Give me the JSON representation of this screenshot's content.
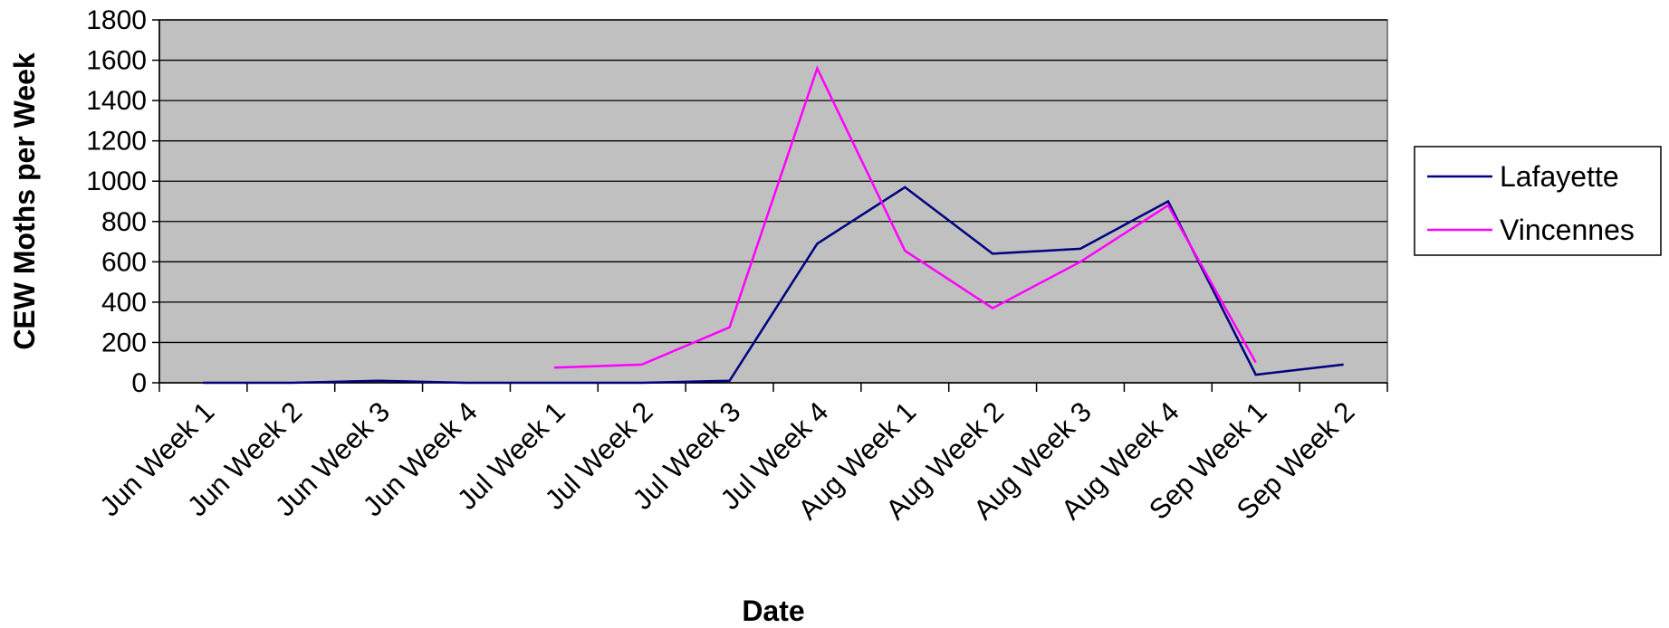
{
  "chart_data": {
    "type": "line",
    "title": "",
    "xlabel": "Date",
    "ylabel": "CEW Moths per Week",
    "ylim": [
      0,
      1800
    ],
    "yticks": [
      0,
      200,
      400,
      600,
      800,
      1000,
      1200,
      1400,
      1600,
      1800
    ],
    "grid": true,
    "plot_background": "#c0c0c0",
    "legend_position": "right",
    "categories": [
      "Jun Week 1",
      "Jun Week 2",
      "Jun Week 3",
      "Jun Week 4",
      "Jul Week 1",
      "Jul Week 2",
      "Jul Week 3",
      "Jul Week 4",
      "Aug Week 1",
      "Aug Week 2",
      "Aug Week 3",
      "Aug Week 4",
      "Sep Week 1",
      "Sep Week 2"
    ],
    "series": [
      {
        "name": "Lafayette",
        "color": "#000080",
        "values": [
          0,
          0,
          10,
          0,
          0,
          0,
          10,
          690,
          970,
          640,
          665,
          900,
          40,
          90
        ]
      },
      {
        "name": "Vincennes",
        "color": "#ff00ff",
        "values": [
          null,
          null,
          null,
          null,
          75,
          90,
          275,
          1560,
          655,
          370,
          600,
          880,
          100,
          null
        ]
      }
    ]
  }
}
